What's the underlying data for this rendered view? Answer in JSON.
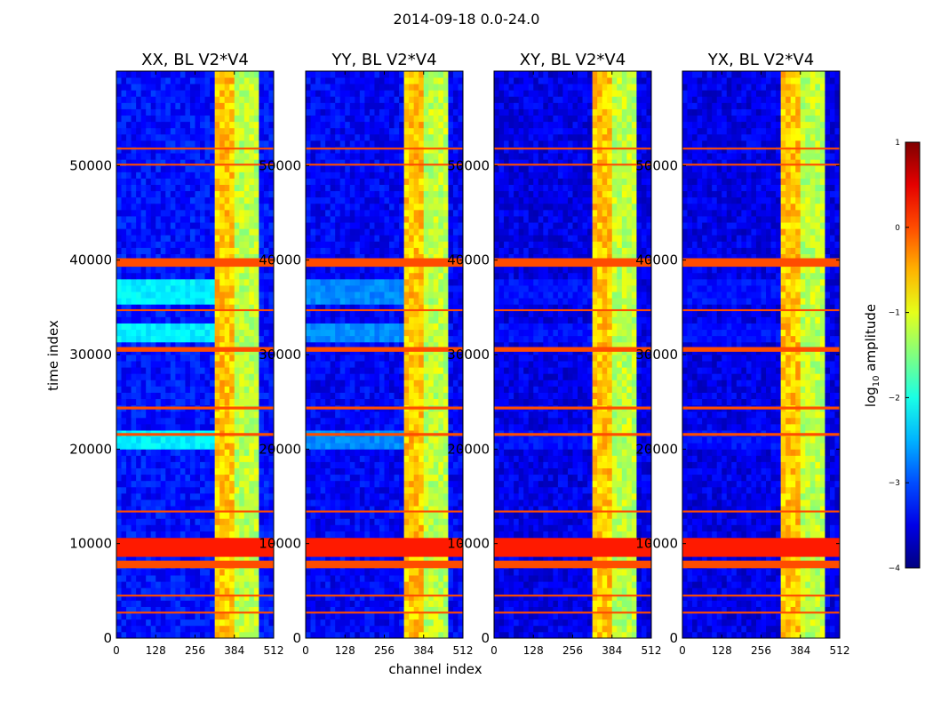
{
  "figure_title": "2014-09-18 0.0-24.0",
  "chart_data": {
    "type": "heatmap",
    "suptitle": "2014-09-18 0.0-24.0",
    "xlabel": "channel index",
    "ylabel": "time index",
    "xlim": [
      0,
      512
    ],
    "ylim": [
      0,
      60000
    ],
    "xticks": [
      0,
      128,
      256,
      384,
      512
    ],
    "yticks": [
      0,
      10000,
      20000,
      30000,
      40000,
      50000
    ],
    "panels": [
      {
        "title": "XX, BL V2*V4",
        "base": -3.3,
        "low_band_boost": 0.55
      },
      {
        "title": "YY, BL V2*V4",
        "base": -3.4,
        "low_band_boost": 0.35
      },
      {
        "title": "XY, BL V2*V4",
        "base": -3.5,
        "low_band_boost": 0.1
      },
      {
        "title": "YX, BL V2*V4",
        "base": -3.5,
        "low_band_boost": 0.1
      }
    ],
    "bright_channel_range": [
      320,
      470
    ],
    "bright_level": -1.2,
    "flagged_time_bands": [
      [
        7400,
        8200
      ],
      [
        8600,
        10600
      ],
      [
        30300,
        30800
      ],
      [
        39300,
        40200
      ],
      [
        50000,
        50200
      ],
      [
        51700,
        51900
      ],
      [
        21400,
        21700
      ],
      [
        24200,
        24500
      ],
      [
        34600,
        34800
      ],
      [
        4400,
        4600
      ],
      [
        2600,
        2800
      ],
      [
        13300,
        13500
      ]
    ],
    "flag_level": 0.0,
    "colorbar": {
      "label": "log10 amplitude",
      "label_base": "log",
      "label_sub": "10",
      "label_rest": " amplitude",
      "min": -4,
      "max": 1,
      "ticks": [
        1,
        0,
        -1,
        -2,
        -3,
        -4
      ],
      "tick_labels": [
        "1",
        "0",
        "−1",
        "−2",
        "−3",
        "−4"
      ]
    }
  }
}
